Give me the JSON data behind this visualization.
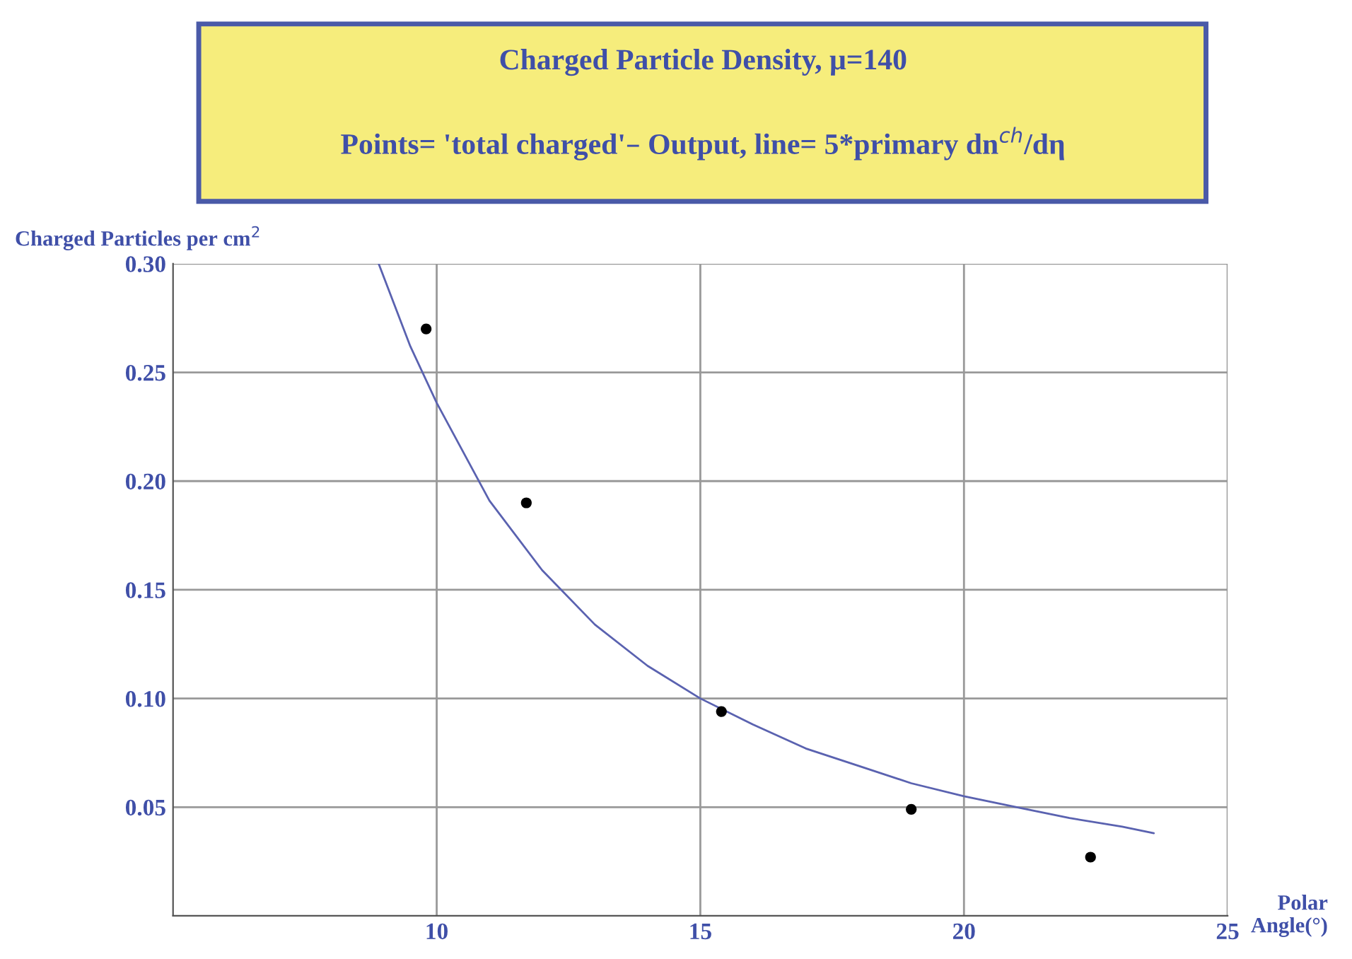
{
  "chart_data": {
    "type": "scatter",
    "title": "Charged Particle Density, μ=140",
    "subtitle": "Points= 'total charged'– Output, line= 5*primary dn$^{ch}$/dη",
    "ylabel": "Charged Particles per cm$^{2}$",
    "xlabel": "Polar\nAngle(°)",
    "series": [
      {
        "color": "#000000",
        "marker": "circle",
        "x": [
          9.8,
          11.7,
          15.4,
          19.0,
          22.4
        ],
        "values": [
          0.27,
          0.19,
          0.094,
          0.049,
          0.027
        ]
      },
      {
        "type": "line",
        "color": "#5a62b0",
        "marker": "none",
        "x": [
          8.9,
          9.5,
          10,
          11,
          12,
          13,
          14,
          15,
          16,
          17,
          18,
          19,
          20,
          21,
          22,
          23,
          23.6
        ],
        "values": [
          0.3,
          0.262,
          0.236,
          0.191,
          0.159,
          0.134,
          0.115,
          0.1,
          0.088,
          0.077,
          0.069,
          0.061,
          0.055,
          0.05,
          0.045,
          0.041,
          0.038
        ]
      }
    ],
    "xlim": [
      5,
      25
    ],
    "xticks": [
      10,
      15,
      20,
      25
    ],
    "ylim": [
      0,
      0.3
    ],
    "yticks": [
      {
        "value": 0.05,
        "label": "0.05"
      },
      {
        "value": 0.1,
        "label": "0.10"
      },
      {
        "value": 0.15,
        "label": "0.15"
      },
      {
        "value": 0.2,
        "label": "0.20"
      },
      {
        "value": 0.25,
        "label": "0.25"
      },
      {
        "value": 0.3,
        "label": "0.30"
      }
    ],
    "grid": true,
    "legend": false
  }
}
